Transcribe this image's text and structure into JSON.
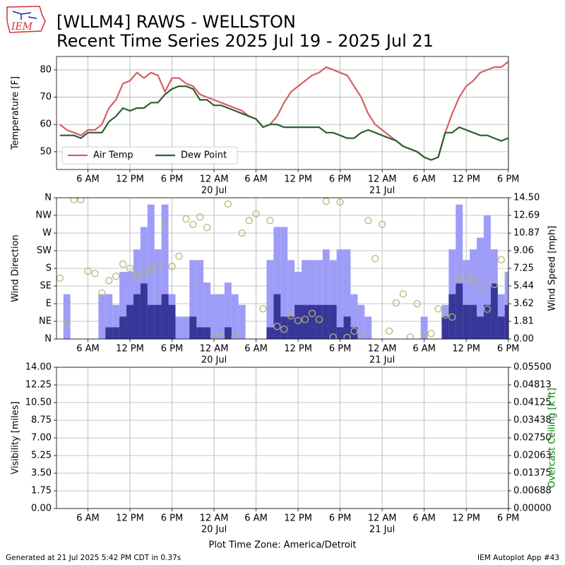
{
  "header": {
    "logo": "IEM",
    "title": "[WLLM4] RAWS - WELLSTON",
    "subtitle": "Recent Time Series 2025 Jul 19 - 2025 Jul 21"
  },
  "footer": {
    "left": "Generated at 21 Jul 2025 5:42 PM CDT in 0.37s",
    "right": "IEM Autoplot App #43"
  },
  "chart_data": [
    {
      "type": "line",
      "ylabel": "Temperature [F]",
      "grid": true,
      "legend": "lower left",
      "xlim": [
        "19 Jul 01:31",
        "21 Jul 18:02"
      ],
      "xticks": [
        {
          "value": "19 Jul 06:00",
          "label": "6 AM"
        },
        {
          "value": "19 Jul 12:00",
          "label": "12 PM"
        },
        {
          "value": "19 Jul 18:00",
          "label": "6 PM"
        },
        {
          "value": "20 Jul 00:00",
          "label": "12 AM"
        },
        {
          "value": "20 Jul 06:00",
          "label": "6 AM"
        },
        {
          "value": "20 Jul 12:00",
          "label": "12 PM"
        },
        {
          "value": "20 Jul 18:00",
          "label": "6 PM"
        },
        {
          "value": "21 Jul 00:00",
          "label": "12 AM"
        },
        {
          "value": "21 Jul 06:00",
          "label": "6 AM"
        },
        {
          "value": "21 Jul 12:00",
          "label": "12 PM"
        },
        {
          "value": "21 Jul 18:00",
          "label": "6 PM"
        }
      ],
      "xdays": [
        {
          "value": "20 Jul 00:00",
          "label": "20 Jul"
        },
        {
          "value": "21 Jul 00:00",
          "label": "21 Jul"
        }
      ],
      "ylim": [
        43.5,
        84.9
      ],
      "yticks": [
        50,
        60,
        70,
        80
      ],
      "x": [
        "19 Jul 02:00",
        "19 Jul 03:00",
        "19 Jul 04:00",
        "19 Jul 05:00",
        "19 Jul 06:00",
        "19 Jul 07:00",
        "19 Jul 08:00",
        "19 Jul 09:00",
        "19 Jul 10:00",
        "19 Jul 11:00",
        "19 Jul 12:00",
        "19 Jul 13:00",
        "19 Jul 14:00",
        "19 Jul 15:00",
        "19 Jul 16:00",
        "19 Jul 17:00",
        "19 Jul 18:00",
        "19 Jul 19:00",
        "19 Jul 20:00",
        "19 Jul 21:00",
        "19 Jul 22:00",
        "19 Jul 23:00",
        "20 Jul 00:00",
        "20 Jul 01:00",
        "20 Jul 02:00",
        "20 Jul 03:00",
        "20 Jul 04:00",
        "20 Jul 05:00",
        "20 Jul 06:00",
        "20 Jul 07:00",
        "20 Jul 08:00",
        "20 Jul 09:00",
        "20 Jul 10:00",
        "20 Jul 11:00",
        "20 Jul 12:00",
        "20 Jul 13:00",
        "20 Jul 14:00",
        "20 Jul 15:00",
        "20 Jul 16:00",
        "20 Jul 17:00",
        "20 Jul 18:00",
        "20 Jul 19:00",
        "20 Jul 20:00",
        "20 Jul 21:00",
        "20 Jul 22:00",
        "20 Jul 23:00",
        "21 Jul 00:00",
        "21 Jul 01:00",
        "21 Jul 02:00",
        "21 Jul 03:00",
        "21 Jul 04:00",
        "21 Jul 05:00",
        "21 Jul 06:00",
        "21 Jul 07:00",
        "21 Jul 08:00",
        "21 Jul 09:00",
        "21 Jul 10:00",
        "21 Jul 11:00",
        "21 Jul 12:00",
        "21 Jul 13:00",
        "21 Jul 14:00",
        "21 Jul 15:00",
        "21 Jul 16:00",
        "21 Jul 17:00",
        "21 Jul 18:00"
      ],
      "series": [
        {
          "name": "Air Temp",
          "color": "#d65f67",
          "values": [
            60,
            58,
            57,
            56,
            58,
            58,
            60,
            66,
            69,
            75,
            76,
            79,
            77,
            79,
            78,
            72,
            77,
            77,
            75,
            74,
            71,
            70,
            69,
            68,
            67,
            66,
            65,
            63,
            62,
            59,
            60,
            63,
            68,
            72,
            74,
            76,
            78,
            79,
            81,
            80,
            79,
            78,
            74,
            70,
            64,
            60,
            58,
            56,
            54,
            52,
            51,
            50,
            48,
            47,
            48,
            57,
            64,
            70,
            74,
            76,
            79,
            80,
            81,
            81,
            83
          ]
        },
        {
          "name": "Dew Point",
          "color": "#2f5d2f",
          "values": [
            56,
            56,
            56,
            55,
            57,
            57,
            57,
            61,
            63,
            66,
            65,
            66,
            66,
            68,
            68,
            71,
            73,
            74,
            74,
            73,
            69,
            69,
            67,
            67,
            66,
            65,
            64,
            63,
            62,
            59,
            60,
            60,
            59,
            59,
            59,
            59,
            59,
            59,
            57,
            57,
            56,
            55,
            55,
            57,
            58,
            57,
            56,
            55,
            54,
            52,
            51,
            50,
            48,
            47,
            48,
            57,
            57,
            59,
            58,
            57,
            56,
            56,
            55,
            54,
            55
          ]
        }
      ]
    },
    {
      "type": "bar",
      "ylabel": "Wind Direction",
      "y2label": "Wind Speed [mph]",
      "grid": true,
      "xlim": [
        "19 Jul 01:31",
        "21 Jul 18:02"
      ],
      "xticks": [
        {
          "value": "19 Jul 06:00",
          "label": "6 AM"
        },
        {
          "value": "19 Jul 12:00",
          "label": "12 PM"
        },
        {
          "value": "19 Jul 18:00",
          "label": "6 PM"
        },
        {
          "value": "20 Jul 00:00",
          "label": "12 AM"
        },
        {
          "value": "20 Jul 06:00",
          "label": "6 AM"
        },
        {
          "value": "20 Jul 12:00",
          "label": "12 PM"
        },
        {
          "value": "20 Jul 18:00",
          "label": "6 PM"
        },
        {
          "value": "21 Jul 00:00",
          "label": "12 AM"
        },
        {
          "value": "21 Jul 06:00",
          "label": "6 AM"
        },
        {
          "value": "21 Jul 12:00",
          "label": "12 PM"
        },
        {
          "value": "21 Jul 18:00",
          "label": "6 PM"
        }
      ],
      "xdays": [
        {
          "value": "20 Jul 00:00",
          "label": "20 Jul"
        },
        {
          "value": "21 Jul 00:00",
          "label": "21 Jul"
        }
      ],
      "ylim": [
        0,
        360
      ],
      "yticks": [
        {
          "value": 0,
          "label": "N"
        },
        {
          "value": 45,
          "label": "NE"
        },
        {
          "value": 90,
          "label": "E"
        },
        {
          "value": 135,
          "label": "SE"
        },
        {
          "value": 180,
          "label": "S"
        },
        {
          "value": 225,
          "label": "SW"
        },
        {
          "value": 270,
          "label": "W"
        },
        {
          "value": 315,
          "label": "NW"
        },
        {
          "value": 360,
          "label": "N"
        }
      ],
      "y2lim": [
        0,
        14.5
      ],
      "y2ticks": [
        {
          "value": 0,
          "label": "0.00"
        },
        1.81,
        3.62,
        5.44,
        7.25,
        9.06,
        10.87,
        12.69,
        {
          "value": 14.5,
          "label": "14.50"
        }
      ],
      "x": [
        "19 Jul 02:00",
        "19 Jul 03:00",
        "19 Jul 04:00",
        "19 Jul 05:00",
        "19 Jul 06:00",
        "19 Jul 07:00",
        "19 Jul 08:00",
        "19 Jul 09:00",
        "19 Jul 10:00",
        "19 Jul 11:00",
        "19 Jul 12:00",
        "19 Jul 13:00",
        "19 Jul 14:00",
        "19 Jul 15:00",
        "19 Jul 16:00",
        "19 Jul 17:00",
        "19 Jul 18:00",
        "19 Jul 19:00",
        "19 Jul 20:00",
        "19 Jul 21:00",
        "19 Jul 22:00",
        "19 Jul 23:00",
        "20 Jul 00:00",
        "20 Jul 01:00",
        "20 Jul 02:00",
        "20 Jul 03:00",
        "20 Jul 04:00",
        "20 Jul 05:00",
        "20 Jul 06:00",
        "20 Jul 07:00",
        "20 Jul 08:00",
        "20 Jul 09:00",
        "20 Jul 10:00",
        "20 Jul 11:00",
        "20 Jul 12:00",
        "20 Jul 13:00",
        "20 Jul 14:00",
        "20 Jul 15:00",
        "20 Jul 16:00",
        "20 Jul 17:00",
        "20 Jul 18:00",
        "20 Jul 19:00",
        "20 Jul 20:00",
        "20 Jul 21:00",
        "20 Jul 22:00",
        "20 Jul 23:00",
        "21 Jul 00:00",
        "21 Jul 01:00",
        "21 Jul 02:00",
        "21 Jul 03:00",
        "21 Jul 04:00",
        "21 Jul 05:00",
        "21 Jul 06:00",
        "21 Jul 07:00",
        "21 Jul 08:00",
        "21 Jul 09:00",
        "21 Jul 10:00",
        "21 Jul 11:00",
        "21 Jul 12:00",
        "21 Jul 13:00",
        "21 Jul 14:00",
        "21 Jul 15:00",
        "21 Jul 16:00",
        "21 Jul 17:00",
        "21 Jul 18:00"
      ],
      "series": [
        {
          "type": "bar",
          "axis": "y2",
          "color": "#9d9df8",
          "values": [
            0,
            4.6,
            0,
            0,
            0,
            0,
            4.6,
            4.6,
            3.5,
            6.9,
            6.9,
            9.2,
            11.5,
            13.8,
            9.2,
            13.8,
            4.6,
            2.3,
            2.3,
            8.1,
            8.1,
            5.8,
            4.6,
            4.6,
            5.8,
            4.6,
            3.5,
            0,
            0,
            0,
            8.1,
            11.5,
            11.5,
            8.1,
            6.9,
            8.1,
            8.1,
            8.1,
            9.2,
            8.1,
            9.2,
            9.2,
            4.6,
            3.5,
            2.3,
            0,
            0,
            0,
            0,
            0,
            0,
            0,
            2.3,
            0,
            0,
            3.5,
            9.2,
            13.8,
            8.1,
            9.2,
            10.4,
            12.7,
            9.2,
            4.6,
            6.9
          ]
        },
        {
          "type": "bar",
          "axis": "y2",
          "color": "#37379a",
          "values": [
            0,
            0,
            0,
            0,
            0,
            0,
            0,
            1.2,
            1.2,
            2.3,
            3.5,
            4.6,
            5.7,
            3.5,
            3.5,
            4.6,
            3.5,
            0,
            0,
            2.3,
            1.2,
            1.2,
            0,
            0,
            1.2,
            0,
            0,
            0,
            0,
            0,
            1.2,
            4.6,
            2.3,
            2.3,
            3.5,
            3.5,
            3.5,
            3.5,
            3.5,
            3.5,
            1.2,
            2.3,
            1.2,
            0,
            0,
            0,
            0,
            0,
            0,
            0,
            0,
            0,
            0,
            0,
            0,
            2.3,
            4.6,
            5.7,
            3.5,
            3.5,
            2.3,
            3.5,
            5.7,
            2.3,
            3.5
          ]
        },
        {
          "type": "scatter",
          "color": "#b5b577",
          "values": [
            155,
            41,
            355,
            355,
            173,
            167,
            117,
            149,
            160,
            191,
            180,
            162,
            169,
            178,
            185,
            290,
            185,
            211,
            306,
            292,
            311,
            284,
            7,
            4,
            344,
            4,
            270,
            302,
            319,
            77,
            302,
            32,
            25,
            59,
            47,
            50,
            65,
            50,
            351,
            5,
            349,
            4,
            20,
            11,
            302,
            205,
            292,
            20,
            92,
            115,
            5,
            90,
            11,
            14,
            77,
            61,
            56,
            155,
            155,
            150,
            135,
            76,
            139,
            202,
            162
          ]
        }
      ]
    },
    {
      "type": "line",
      "ylabel": "Visibility [miles]",
      "y2label": "Overcast Ceiling [k ft]",
      "y2label_color": "#008000",
      "xlabel": "Plot Time Zone: America/Detroit",
      "grid": true,
      "xlim": [
        "19 Jul 01:31",
        "21 Jul 18:02"
      ],
      "xticks": [
        {
          "value": "19 Jul 06:00",
          "label": "6 AM"
        },
        {
          "value": "19 Jul 12:00",
          "label": "12 PM"
        },
        {
          "value": "19 Jul 18:00",
          "label": "6 PM"
        },
        {
          "value": "20 Jul 00:00",
          "label": "12 AM"
        },
        {
          "value": "20 Jul 06:00",
          "label": "6 AM"
        },
        {
          "value": "20 Jul 12:00",
          "label": "12 PM"
        },
        {
          "value": "20 Jul 18:00",
          "label": "6 PM"
        },
        {
          "value": "21 Jul 00:00",
          "label": "12 AM"
        },
        {
          "value": "21 Jul 06:00",
          "label": "6 AM"
        },
        {
          "value": "21 Jul 12:00",
          "label": "12 PM"
        },
        {
          "value": "21 Jul 18:00",
          "label": "6 PM"
        }
      ],
      "xdays": [
        {
          "value": "20 Jul 00:00",
          "label": "20 Jul"
        },
        {
          "value": "21 Jul 00:00",
          "label": "21 Jul"
        }
      ],
      "ylim": [
        0,
        14
      ],
      "yticks": [
        {
          "value": 0,
          "label": "0.00"
        },
        1.75,
        {
          "value": 3.5,
          "label": "3.50"
        },
        5.25,
        {
          "value": 7,
          "label": "7.00"
        },
        8.75,
        {
          "value": 10.5,
          "label": "10.50"
        },
        12.25,
        {
          "value": 14,
          "label": "14.00"
        }
      ],
      "y2lim": [
        0,
        0.055
      ],
      "y2ticks": [
        {
          "value": 0,
          "label": "0.00000"
        },
        0.00688,
        0.01375,
        0.02063,
        {
          "value": 0.0275,
          "label": "0.02750"
        },
        0.03438,
        0.04125,
        0.04813,
        {
          "value": 0.055,
          "label": "0.05500"
        }
      ]
    }
  ]
}
